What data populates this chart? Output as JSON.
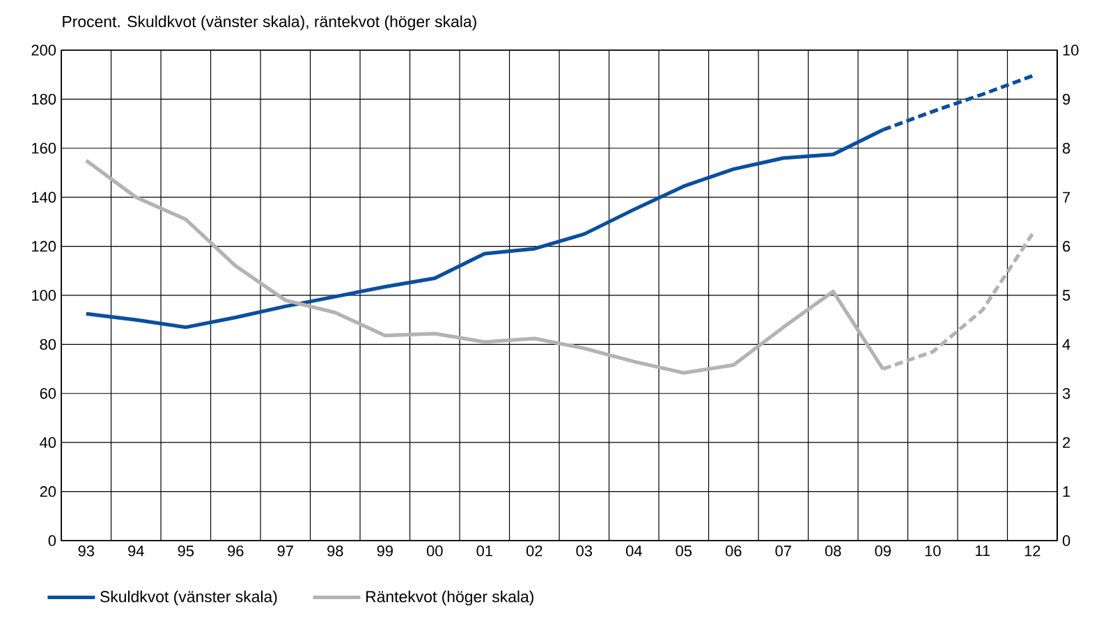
{
  "chart_data": {
    "type": "line",
    "title": "Procent. Skuldkvot (vänster skala), räntekvot (höger skala)",
    "categories": [
      "93",
      "94",
      "95",
      "96",
      "97",
      "98",
      "99",
      "00",
      "01",
      "02",
      "03",
      "04",
      "05",
      "06",
      "07",
      "08",
      "09",
      "10",
      "11",
      "12"
    ],
    "series": [
      {
        "name": "Skuldkvot (vänster skala)",
        "color": "#0a4f9e",
        "line_style": "solid",
        "values": [
          92.5,
          90,
          87,
          91,
          95.5,
          99.5,
          103.5,
          107,
          117,
          119,
          125,
          135,
          144.5,
          151.5,
          156,
          157.5,
          167.5,
          null,
          null,
          null
        ]
      },
      {
        "color": "#0a4f9e",
        "line_style": "dashed",
        "values": [
          null,
          null,
          null,
          null,
          null,
          null,
          null,
          null,
          null,
          null,
          null,
          null,
          null,
          null,
          null,
          null,
          167.5,
          175,
          182,
          189.5
        ]
      },
      {
        "name": "Räntekvot (höger skala)",
        "color": "#b3b3b3",
        "axis": "y2",
        "line_style": "solid",
        "values": [
          7.75,
          7.0,
          6.55,
          5.6,
          4.9,
          4.65,
          4.18,
          4.22,
          4.05,
          4.12,
          3.92,
          3.65,
          3.42,
          3.58,
          4.35,
          5.08,
          3.5,
          null,
          null,
          null
        ]
      },
      {
        "color": "#b3b3b3",
        "axis": "y2",
        "line_style": "dashed",
        "values": [
          null,
          null,
          null,
          null,
          null,
          null,
          null,
          null,
          null,
          null,
          null,
          null,
          null,
          null,
          null,
          null,
          3.5,
          3.85,
          4.7,
          6.25
        ]
      }
    ],
    "ylim": [
      0,
      200
    ],
    "yticks": [
      0,
      20,
      40,
      60,
      80,
      100,
      120,
      140,
      160,
      180,
      200
    ],
    "y2lim": [
      0,
      10
    ],
    "y2ticks": [
      0,
      1,
      2,
      3,
      4,
      5,
      6,
      7,
      8,
      9,
      10
    ],
    "grid": true,
    "legend": "bottom"
  }
}
